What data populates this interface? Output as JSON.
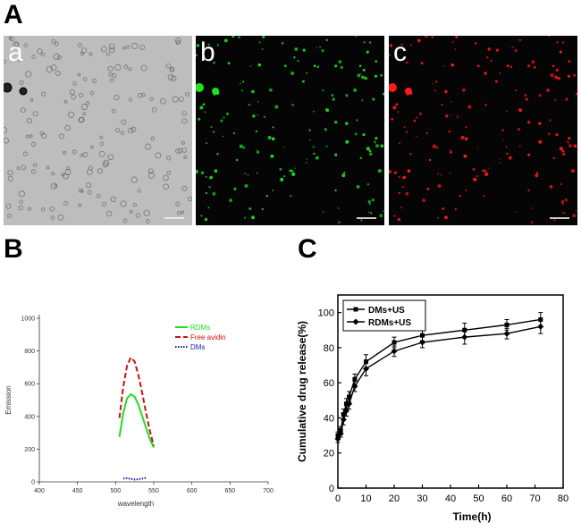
{
  "panels": {
    "A": {
      "letter": "A",
      "images": [
        {
          "label": "a",
          "background": "#bdbdbd",
          "dot_color": "#3a3a3a"
        },
        {
          "label": "b",
          "background": "#050505",
          "dot_color": "#21e021"
        },
        {
          "label": "c",
          "background": "#050505",
          "dot_color": "#ff1a1a"
        }
      ]
    },
    "B": {
      "letter": "B"
    },
    "C": {
      "letter": "C"
    }
  },
  "chart_data": [
    {
      "id": "B",
      "type": "line",
      "title": "",
      "xlabel": "wavelength",
      "ylabel": "Emission",
      "xlim": [
        400,
        700
      ],
      "ylim": [
        0,
        1000
      ],
      "xticks": [
        400,
        450,
        500,
        550,
        600,
        650,
        700
      ],
      "yticks": [
        0,
        200,
        400,
        600,
        800,
        1000
      ],
      "legend_position": "top-right",
      "series": [
        {
          "name": "RDMs",
          "color": "#22dd22",
          "dash": "solid",
          "x": [
            505,
            510,
            515,
            520,
            525,
            530,
            535,
            540,
            545,
            550
          ],
          "y": [
            275,
            420,
            510,
            535,
            520,
            470,
            400,
            330,
            260,
            210
          ]
        },
        {
          "name": "Free avidin",
          "color": "#cc1111",
          "dash": "dashed",
          "x": [
            505,
            510,
            515,
            520,
            525,
            530,
            535,
            540,
            545,
            550
          ],
          "y": [
            390,
            580,
            710,
            760,
            735,
            650,
            540,
            420,
            310,
            220
          ]
        },
        {
          "name": "DMs",
          "color": "#1a1aaa",
          "dash": "dotted",
          "x": [
            510,
            515,
            520,
            525,
            530,
            535,
            540
          ],
          "y": [
            20,
            22,
            18,
            14,
            16,
            20,
            24
          ]
        }
      ]
    },
    {
      "id": "C",
      "type": "line",
      "title": "",
      "xlabel": "Time(h)",
      "ylabel": "Cumulative drug release(%)",
      "xlim": [
        0,
        80
      ],
      "ylim": [
        0,
        110
      ],
      "xticks": [
        0,
        10,
        20,
        30,
        40,
        50,
        60,
        70,
        80
      ],
      "yticks": [
        0,
        20,
        40,
        60,
        80,
        100
      ],
      "legend_position": "top-left",
      "series": [
        {
          "name": "DMs+US",
          "marker": "square",
          "x": [
            0,
            1,
            2,
            3,
            4,
            6,
            10,
            20,
            30,
            45,
            60,
            72
          ],
          "y": [
            30,
            33,
            42,
            48,
            52,
            62,
            72,
            83,
            87,
            90,
            93,
            96
          ],
          "err": [
            2,
            2,
            3,
            3,
            3,
            3,
            4,
            3,
            3,
            4,
            3,
            4
          ]
        },
        {
          "name": "RDMs+US",
          "marker": "diamond",
          "x": [
            0,
            1,
            2,
            3,
            4,
            6,
            10,
            20,
            30,
            45,
            60,
            72
          ],
          "y": [
            28,
            31,
            39,
            44,
            48,
            58,
            68,
            78,
            83,
            86,
            88,
            92
          ],
          "err": [
            2,
            2,
            3,
            3,
            3,
            3,
            4,
            3,
            3,
            4,
            3,
            4
          ]
        }
      ]
    }
  ]
}
